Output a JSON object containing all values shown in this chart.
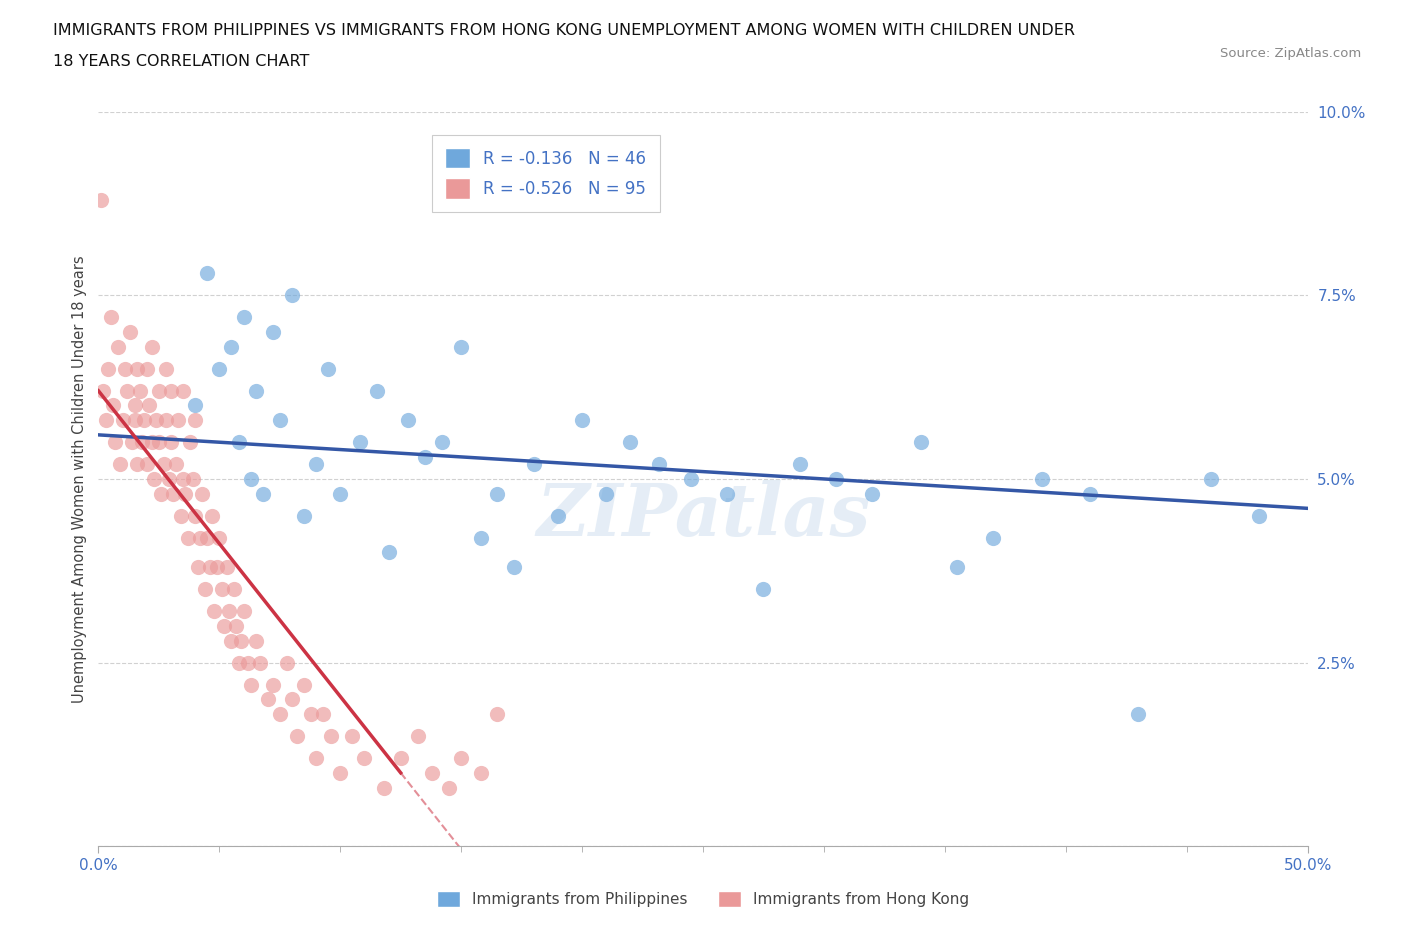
{
  "title_line1": "IMMIGRANTS FROM PHILIPPINES VS IMMIGRANTS FROM HONG KONG UNEMPLOYMENT AMONG WOMEN WITH CHILDREN UNDER",
  "title_line2": "18 YEARS CORRELATION CHART",
  "source": "Source: ZipAtlas.com",
  "ylabel": "Unemployment Among Women with Children Under 18 years",
  "xlim": [
    0.0,
    0.5
  ],
  "ylim": [
    0.0,
    0.1
  ],
  "philippines_R": -0.136,
  "philippines_N": 46,
  "hongkong_R": -0.526,
  "hongkong_N": 95,
  "philippines_color": "#6fa8dc",
  "hongkong_color": "#ea9999",
  "philippines_line_color": "#3457a6",
  "hongkong_line_color": "#cc3344",
  "background_color": "#ffffff",
  "watermark": "ZIPAtlas",
  "philippines_x": [
    0.04,
    0.045,
    0.05,
    0.055,
    0.058,
    0.06,
    0.063,
    0.065,
    0.068,
    0.072,
    0.075,
    0.08,
    0.085,
    0.09,
    0.095,
    0.1,
    0.108,
    0.115,
    0.12,
    0.128,
    0.135,
    0.142,
    0.15,
    0.158,
    0.165,
    0.172,
    0.18,
    0.19,
    0.2,
    0.21,
    0.22,
    0.232,
    0.245,
    0.26,
    0.275,
    0.29,
    0.305,
    0.32,
    0.34,
    0.355,
    0.37,
    0.39,
    0.41,
    0.43,
    0.46,
    0.48
  ],
  "philippines_y": [
    0.06,
    0.078,
    0.065,
    0.068,
    0.055,
    0.072,
    0.05,
    0.062,
    0.048,
    0.07,
    0.058,
    0.075,
    0.045,
    0.052,
    0.065,
    0.048,
    0.055,
    0.062,
    0.04,
    0.058,
    0.053,
    0.055,
    0.068,
    0.042,
    0.048,
    0.038,
    0.052,
    0.045,
    0.058,
    0.048,
    0.055,
    0.052,
    0.05,
    0.048,
    0.035,
    0.052,
    0.05,
    0.048,
    0.055,
    0.038,
    0.042,
    0.05,
    0.048,
    0.018,
    0.05,
    0.045
  ],
  "hongkong_x": [
    0.001,
    0.002,
    0.003,
    0.004,
    0.005,
    0.006,
    0.007,
    0.008,
    0.009,
    0.01,
    0.011,
    0.012,
    0.013,
    0.014,
    0.015,
    0.015,
    0.016,
    0.016,
    0.017,
    0.018,
    0.019,
    0.02,
    0.02,
    0.021,
    0.022,
    0.022,
    0.023,
    0.024,
    0.025,
    0.025,
    0.026,
    0.027,
    0.028,
    0.028,
    0.029,
    0.03,
    0.03,
    0.031,
    0.032,
    0.033,
    0.034,
    0.035,
    0.035,
    0.036,
    0.037,
    0.038,
    0.039,
    0.04,
    0.04,
    0.041,
    0.042,
    0.043,
    0.044,
    0.045,
    0.046,
    0.047,
    0.048,
    0.049,
    0.05,
    0.051,
    0.052,
    0.053,
    0.054,
    0.055,
    0.056,
    0.057,
    0.058,
    0.059,
    0.06,
    0.062,
    0.063,
    0.065,
    0.067,
    0.07,
    0.072,
    0.075,
    0.078,
    0.08,
    0.082,
    0.085,
    0.088,
    0.09,
    0.093,
    0.096,
    0.1,
    0.105,
    0.11,
    0.118,
    0.125,
    0.132,
    0.138,
    0.145,
    0.15,
    0.158,
    0.165
  ],
  "hongkong_y": [
    0.088,
    0.062,
    0.058,
    0.065,
    0.072,
    0.06,
    0.055,
    0.068,
    0.052,
    0.058,
    0.065,
    0.062,
    0.07,
    0.055,
    0.06,
    0.058,
    0.065,
    0.052,
    0.062,
    0.055,
    0.058,
    0.052,
    0.065,
    0.06,
    0.055,
    0.068,
    0.05,
    0.058,
    0.055,
    0.062,
    0.048,
    0.052,
    0.058,
    0.065,
    0.05,
    0.055,
    0.062,
    0.048,
    0.052,
    0.058,
    0.045,
    0.05,
    0.062,
    0.048,
    0.042,
    0.055,
    0.05,
    0.045,
    0.058,
    0.038,
    0.042,
    0.048,
    0.035,
    0.042,
    0.038,
    0.045,
    0.032,
    0.038,
    0.042,
    0.035,
    0.03,
    0.038,
    0.032,
    0.028,
    0.035,
    0.03,
    0.025,
    0.028,
    0.032,
    0.025,
    0.022,
    0.028,
    0.025,
    0.02,
    0.022,
    0.018,
    0.025,
    0.02,
    0.015,
    0.022,
    0.018,
    0.012,
    0.018,
    0.015,
    0.01,
    0.015,
    0.012,
    0.008,
    0.012,
    0.015,
    0.01,
    0.008,
    0.012,
    0.01,
    0.018
  ]
}
